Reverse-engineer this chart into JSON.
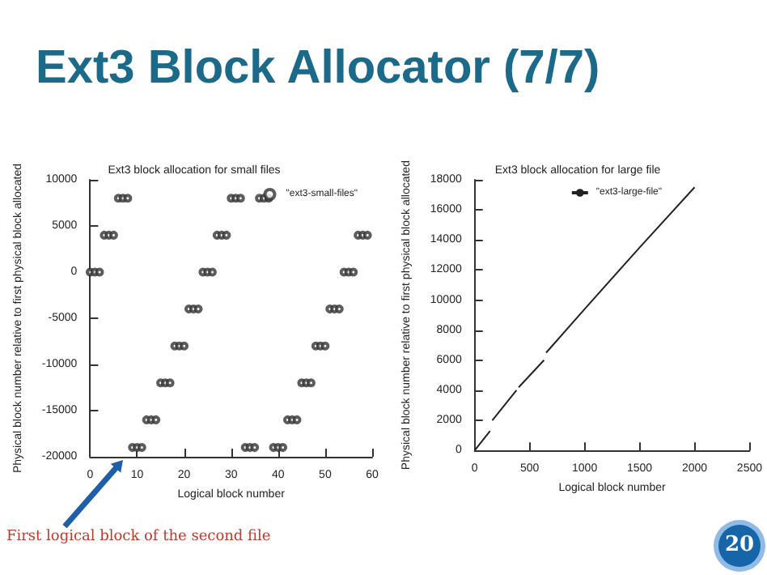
{
  "chart_data": [
    {
      "type": "other",
      "title": "Ext3 Block Allocator (7/7)",
      "annotations": [
        "20"
      ]
    },
    {
      "type": "scatter",
      "title": "Ext3 block allocation for small files",
      "xlabel": "Logical block number",
      "ylabel": "Physical block number relative to first physical block allocated",
      "x": [
        0,
        1,
        2,
        3,
        4,
        5,
        6,
        7,
        8,
        9,
        10,
        11,
        12,
        13,
        14,
        15,
        16,
        17,
        18,
        19,
        20,
        21,
        22,
        23,
        24,
        25,
        26,
        27,
        28,
        29,
        30,
        31,
        32,
        33,
        34,
        35,
        36,
        37,
        38,
        39,
        40,
        41,
        42,
        43,
        44,
        45,
        46,
        47,
        48,
        49,
        50,
        51,
        52,
        53,
        54,
        55,
        56,
        57,
        58,
        59
      ],
      "series": [
        {
          "name": "\"ext3-small-files\"",
          "color": "#333333",
          "values": [
            0,
            0,
            0,
            4000,
            4000,
            4000,
            8000,
            8000,
            8000,
            -19000,
            -19000,
            -19000,
            -16000,
            -16000,
            -16000,
            -12000,
            -12000,
            -12000,
            -8000,
            -8000,
            -8000,
            -4000,
            -4000,
            -4000,
            0,
            0,
            0,
            4000,
            4000,
            4000,
            8000,
            8000,
            8000,
            -19000,
            -19000,
            -19000,
            8000,
            8000,
            8000,
            -19000,
            -19000,
            -19000,
            -16000,
            -16000,
            -16000,
            -12000,
            -12000,
            -12000,
            -8000,
            -8000,
            -8000,
            -4000,
            -4000,
            -4000,
            0,
            0,
            0,
            4000,
            4000,
            4000
          ]
        }
      ],
      "xlim": [
        0,
        60
      ],
      "xticks": [
        0,
        10,
        20,
        30,
        40,
        50,
        60
      ],
      "ylim": [
        -20000,
        10000
      ],
      "yticks": [
        -20000,
        -15000,
        -10000,
        -5000,
        0,
        5000,
        10000
      ],
      "marker": "circle",
      "grid": false,
      "legend": "top right",
      "annotations": [
        "First logical block of the second file"
      ]
    },
    {
      "type": "line",
      "title": "Ext3 block allocation for large file",
      "xlabel": "Logical block number",
      "ylabel": "Physical block number relative to first physical block allocated",
      "x": [
        0,
        140,
        150,
        160,
        380,
        390,
        400,
        630,
        640,
        650,
        1000,
        1500,
        2000
      ],
      "series": [
        {
          "name": "\"ext3-large-file\"",
          "color": "#222222",
          "values": [
            0,
            1300,
            null,
            2000,
            4000,
            null,
            4200,
            6000,
            null,
            6500,
            9400,
            13500,
            17500
          ]
        }
      ],
      "xlim": [
        0,
        2500
      ],
      "xticks": [
        0,
        500,
        1000,
        1500,
        2000,
        2500
      ],
      "ylim": [
        0,
        18000
      ],
      "yticks": [
        0,
        2000,
        4000,
        6000,
        8000,
        10000,
        12000,
        14000,
        16000,
        18000
      ],
      "marker": "none",
      "line_style": "solid",
      "grid": false,
      "legend": "top right"
    }
  ]
}
